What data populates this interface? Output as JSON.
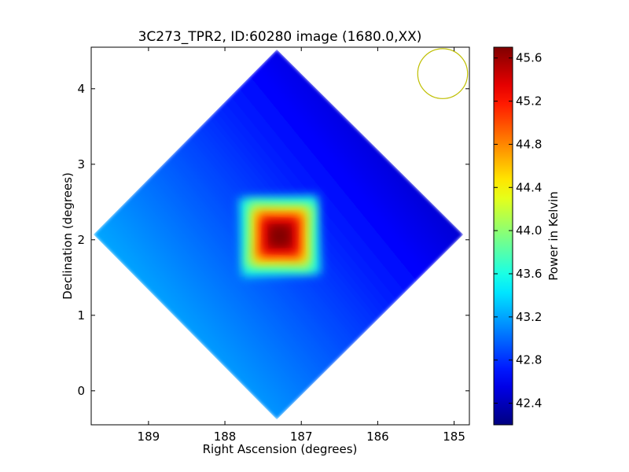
{
  "chart_data": {
    "type": "heatmap",
    "title": "3C273_TPR2, ID:60280 image (1680.0,XX)",
    "xlabel": "Right Ascension (degrees)",
    "ylabel": "Declination (degrees)",
    "xlim": [
      189.75,
      184.8
    ],
    "ylim": [
      -0.45,
      4.55
    ],
    "xticks": [
      189,
      188,
      187,
      186,
      185
    ],
    "yticks": [
      0,
      1,
      2,
      3,
      4
    ],
    "x_inverted": true,
    "colorbar": {
      "label": "Power in Kelvin",
      "range": [
        42.2,
        45.7
      ],
      "ticks": [
        "42.4",
        "42.8",
        "43.2",
        "43.6",
        "44.0",
        "44.4",
        "44.8",
        "45.2",
        "45.6"
      ],
      "colormap": "jet"
    },
    "map": {
      "shape": "rotated-square",
      "corners": {
        "top": [
          187.32,
          4.52
        ],
        "right": [
          184.88,
          2.07
        ],
        "bottom": [
          187.32,
          -0.38
        ],
        "left": [
          189.72,
          2.07
        ]
      },
      "peak": {
        "ra": 187.28,
        "dec": 2.05,
        "value": 45.7
      },
      "background_gradient": {
        "left_value": 43.4,
        "top_right_value": 42.3
      }
    },
    "beam": {
      "ra": 185.15,
      "dec": 4.2,
      "radius_deg": 0.33,
      "color": "#bfbf00"
    }
  }
}
